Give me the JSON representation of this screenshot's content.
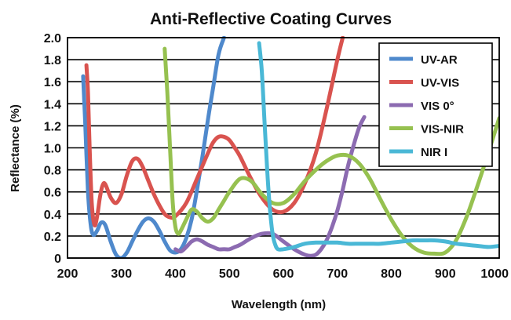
{
  "chart_data": {
    "type": "line",
    "title": "Anti-Reflective Coating Curves",
    "xlabel": "Wavelength (nm)",
    "ylabel": "Reflectance (%)",
    "xlim": [
      200,
      1000
    ],
    "ylim": [
      0,
      2.0
    ],
    "x_ticks": [
      "200",
      "300",
      "400",
      "500",
      "600",
      "700",
      "800",
      "900",
      "1000"
    ],
    "y_ticks": [
      "0",
      "0.2",
      "0.4",
      "0.6",
      "0.8",
      "1.0",
      "1.2",
      "1.4",
      "1.6",
      "1.8",
      "2.0"
    ],
    "grid": "horizontal",
    "legend_position": "top-right",
    "series": [
      {
        "name": "UV-AR",
        "color": "#4f89cc",
        "x": [
          229,
          233,
          238,
          243,
          248,
          255,
          262,
          270,
          280,
          290,
          300,
          310,
          320,
          330,
          340,
          350,
          360,
          370,
          380,
          390,
          400,
          410,
          420,
          430,
          440,
          450,
          460,
          470,
          480,
          490
        ],
        "y": [
          1.65,
          1.2,
          0.6,
          0.3,
          0.21,
          0.25,
          0.32,
          0.3,
          0.15,
          0.03,
          0.0,
          0.05,
          0.15,
          0.25,
          0.33,
          0.36,
          0.33,
          0.25,
          0.15,
          0.07,
          0.05,
          0.08,
          0.18,
          0.35,
          0.62,
          0.92,
          1.25,
          1.55,
          1.85,
          2.0
        ]
      },
      {
        "name": "UV-VIS",
        "color": "#d9534f",
        "x": [
          235,
          238,
          241,
          245,
          250,
          255,
          260,
          265,
          270,
          280,
          290,
          300,
          310,
          320,
          330,
          340,
          350,
          360,
          370,
          380,
          390,
          400,
          420,
          440,
          460,
          470,
          480,
          490,
          500,
          510,
          520,
          540,
          560,
          580,
          600,
          620,
          640,
          660,
          680,
          700,
          710
        ],
        "y": [
          1.75,
          1.5,
          1.0,
          0.5,
          0.3,
          0.38,
          0.55,
          0.66,
          0.67,
          0.55,
          0.5,
          0.58,
          0.75,
          0.88,
          0.9,
          0.82,
          0.7,
          0.58,
          0.48,
          0.4,
          0.37,
          0.38,
          0.5,
          0.72,
          0.95,
          1.05,
          1.1,
          1.1,
          1.07,
          1.0,
          0.92,
          0.72,
          0.55,
          0.44,
          0.42,
          0.5,
          0.68,
          0.95,
          1.35,
          1.8,
          2.0
        ]
      },
      {
        "name": "VIS 0°",
        "color": "#8c6bb1",
        "x": [
          400,
          410,
          420,
          430,
          440,
          450,
          460,
          470,
          480,
          490,
          500,
          510,
          520,
          540,
          560,
          580,
          600,
          620,
          640,
          650,
          660,
          670,
          680,
          690,
          700,
          710,
          720,
          730,
          740,
          750
        ],
        "y": [
          0.08,
          0.06,
          0.1,
          0.15,
          0.17,
          0.15,
          0.12,
          0.1,
          0.08,
          0.08,
          0.08,
          0.1,
          0.12,
          0.18,
          0.22,
          0.22,
          0.15,
          0.08,
          0.03,
          0.02,
          0.03,
          0.08,
          0.16,
          0.28,
          0.43,
          0.62,
          0.84,
          1.02,
          1.18,
          1.28
        ]
      },
      {
        "name": "VIS-NIR",
        "color": "#96c150",
        "x": [
          380,
          385,
          390,
          395,
          400,
          405,
          410,
          420,
          430,
          440,
          450,
          460,
          470,
          480,
          490,
          500,
          520,
          540,
          560,
          580,
          600,
          620,
          640,
          660,
          680,
          700,
          720,
          740,
          760,
          780,
          800,
          820,
          840,
          860,
          880,
          900,
          920,
          940,
          960,
          980,
          1000
        ],
        "y": [
          1.9,
          1.5,
          1.0,
          0.5,
          0.28,
          0.22,
          0.25,
          0.35,
          0.44,
          0.42,
          0.36,
          0.33,
          0.36,
          0.44,
          0.52,
          0.6,
          0.72,
          0.7,
          0.58,
          0.5,
          0.5,
          0.58,
          0.7,
          0.8,
          0.88,
          0.93,
          0.93,
          0.86,
          0.72,
          0.53,
          0.35,
          0.2,
          0.1,
          0.05,
          0.04,
          0.05,
          0.16,
          0.38,
          0.66,
          0.96,
          1.27
        ]
      },
      {
        "name": "NIR I",
        "color": "#4ab8d6",
        "x": [
          555,
          560,
          565,
          570,
          575,
          580,
          585,
          590,
          600,
          620,
          640,
          660,
          680,
          700,
          720,
          740,
          760,
          780,
          800,
          820,
          840,
          860,
          880,
          900,
          920,
          940,
          960,
          980,
          1000
        ],
        "y": [
          1.95,
          1.7,
          1.25,
          0.8,
          0.45,
          0.22,
          0.12,
          0.08,
          0.08,
          0.1,
          0.13,
          0.14,
          0.14,
          0.14,
          0.13,
          0.13,
          0.13,
          0.13,
          0.14,
          0.15,
          0.16,
          0.16,
          0.16,
          0.15,
          0.13,
          0.12,
          0.11,
          0.1,
          0.11
        ]
      }
    ]
  }
}
